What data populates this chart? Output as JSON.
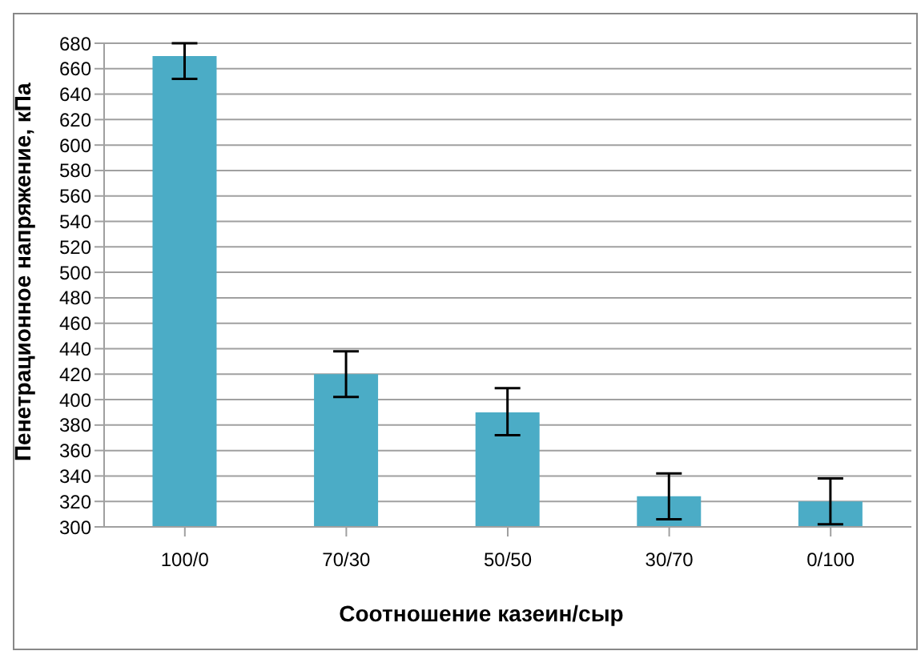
{
  "chart_data": {
    "type": "bar",
    "xlabel": "Соотношение казеин/сыр",
    "ylabel": "Пенетрационное напряжение, кПа",
    "categories": [
      "100/0",
      "70/30",
      "50/50",
      "30/70",
      "0/100"
    ],
    "values": [
      670,
      420,
      390,
      324,
      320
    ],
    "errors": [
      [
        652,
        680
      ],
      [
        402,
        438
      ],
      [
        372,
        409
      ],
      [
        306,
        342
      ],
      [
        302,
        338
      ]
    ],
    "color": "#4bacc6",
    "ylim": [
      300,
      680
    ],
    "yticks": [
      300,
      320,
      340,
      360,
      380,
      400,
      420,
      440,
      460,
      480,
      500,
      520,
      540,
      560,
      580,
      600,
      620,
      640,
      660,
      680
    ],
    "grid": "y"
  }
}
